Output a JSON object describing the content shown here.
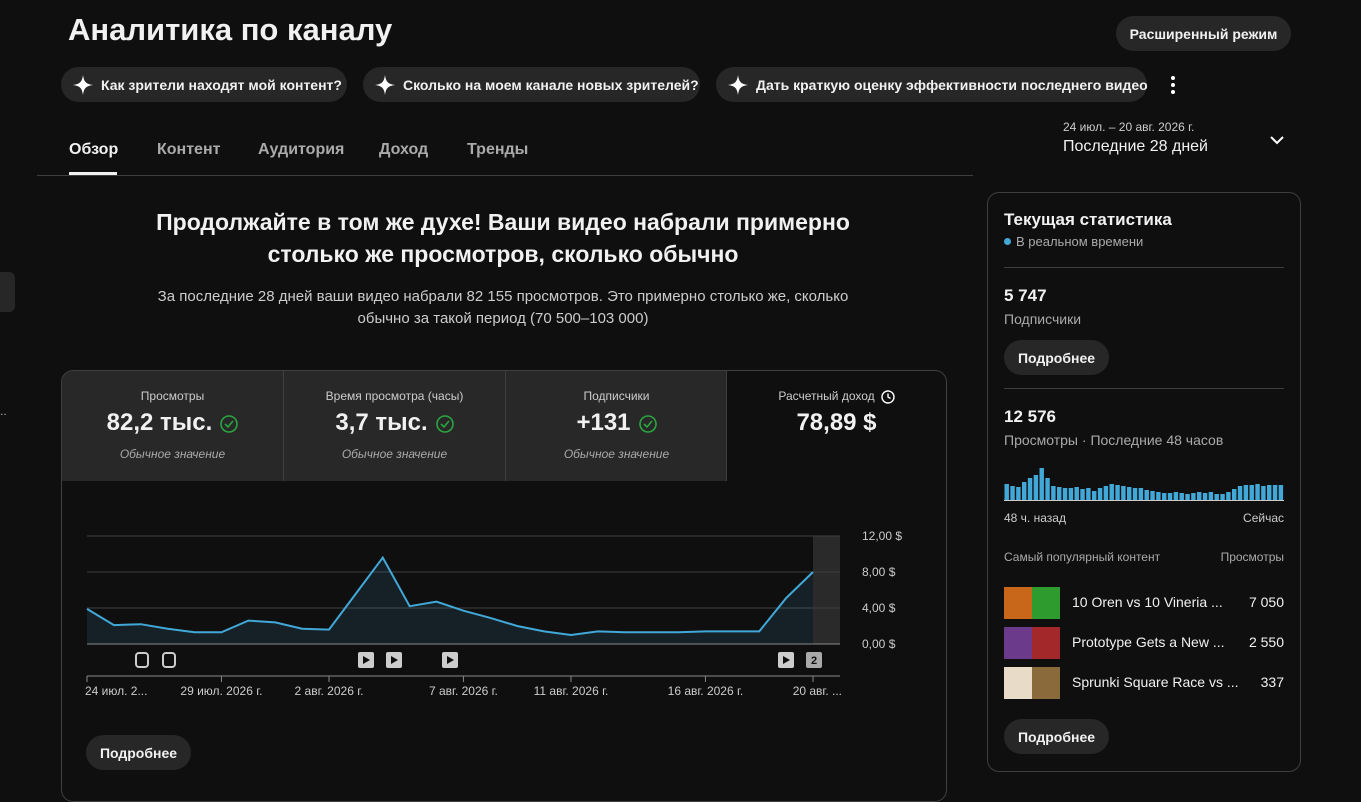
{
  "header": {
    "title": "Аналитика по каналу",
    "advanced_button": "Расширенный режим"
  },
  "suggestions": [
    "Как зрители находят мой контент?",
    "Сколько на моем канале новых зрителей?",
    "Дать краткую оценку эффективности последнего видео"
  ],
  "tabs": [
    "Обзор",
    "Контент",
    "Аудитория",
    "Доход",
    "Тренды"
  ],
  "date_range": {
    "dates": "24 июл. – 20 авг. 2026 г.",
    "period": "Последние 28 дней"
  },
  "summary": {
    "headline": "Продолжайте в том же духе! Ваши видео набрали примерно столько же просмотров, сколько обычно",
    "text": "За последние 28 дней ваши видео набрали 82 155 просмотров. Это примерно столько же, сколько обычно за такой период (70 500–103 000)"
  },
  "metrics": [
    {
      "label": "Просмотры",
      "value": "82,2 тыс.",
      "note": "Обычное значение"
    },
    {
      "label": "Время просмотра (часы)",
      "value": "3,7 тыс.",
      "note": "Обычное значение"
    },
    {
      "label": "Подписчики",
      "value": "+131",
      "note": "Обычное значение"
    },
    {
      "label": "Расчетный доход",
      "value": "78,89 $"
    }
  ],
  "chart_data": [
    {
      "type": "line",
      "color": "#41a8d8",
      "categories": [
        "24 июл. 2...",
        null,
        null,
        null,
        null,
        "29 июл. 2026 г.",
        null,
        null,
        null,
        "2 авг. 2026 г.",
        null,
        null,
        null,
        null,
        "7 авг. 2026 г.",
        null,
        null,
        null,
        "11 авг. 2026 г.",
        null,
        null,
        null,
        null,
        "16 авг. 2026 г.",
        null,
        null,
        null,
        "20 авг. ..."
      ],
      "values": [
        3.9,
        2.1,
        2.2,
        1.7,
        1.3,
        1.3,
        2.6,
        2.4,
        1.7,
        1.6,
        5.6,
        9.6,
        4.2,
        4.7,
        3.7,
        2.9,
        2.0,
        1.4,
        1.0,
        1.4,
        1.3,
        1.3,
        1.3,
        1.4,
        1.4,
        1.4,
        5.1,
        8.0
      ],
      "ylim": [
        0,
        12
      ],
      "yticks": [
        {
          "value": 0,
          "label": "0,00 $"
        },
        {
          "value": 4,
          "label": "4,00 $"
        },
        {
          "value": 8,
          "label": "8,00 $"
        },
        {
          "value": 12,
          "label": "12,00 $"
        }
      ],
      "grid": true,
      "y_axis_side": "right",
      "annotations": [
        "2"
      ]
    },
    {
      "type": "bar",
      "color": "#41a8d8",
      "values": [
        256,
        224,
        208,
        288,
        352,
        400,
        512,
        352,
        224,
        208,
        192,
        192,
        208,
        176,
        192,
        144,
        192,
        224,
        256,
        240,
        224,
        208,
        192,
        192,
        160,
        144,
        128,
        112,
        112,
        128,
        112,
        96,
        112,
        128,
        112,
        128,
        96,
        96,
        128,
        176,
        224,
        240,
        240,
        256,
        224,
        240,
        240,
        240
      ],
      "x_labels": [
        "48 ч. назад",
        "Сейчас"
      ]
    }
  ],
  "chart_button": "Подробнее",
  "realtime": {
    "title": "Текущая статистика",
    "subtitle": "В реальном времени",
    "subscribers": "5 747",
    "subscribers_label": "Подписчики",
    "subscribers_button": "Подробнее",
    "views": "12 576",
    "views_label": "Просмотры · Последние 48 часов",
    "top_header": "Самый популярный контент",
    "top_views_header": "Просмотры",
    "top": [
      {
        "title": "10 Oren vs 10 Vineria ...",
        "views": "7 050"
      },
      {
        "title": "Prototype Gets a New ...",
        "views": "2 550"
      },
      {
        "title": "Sprunki Square Race vs ...",
        "views": "337"
      }
    ],
    "button": "Подробнее"
  }
}
